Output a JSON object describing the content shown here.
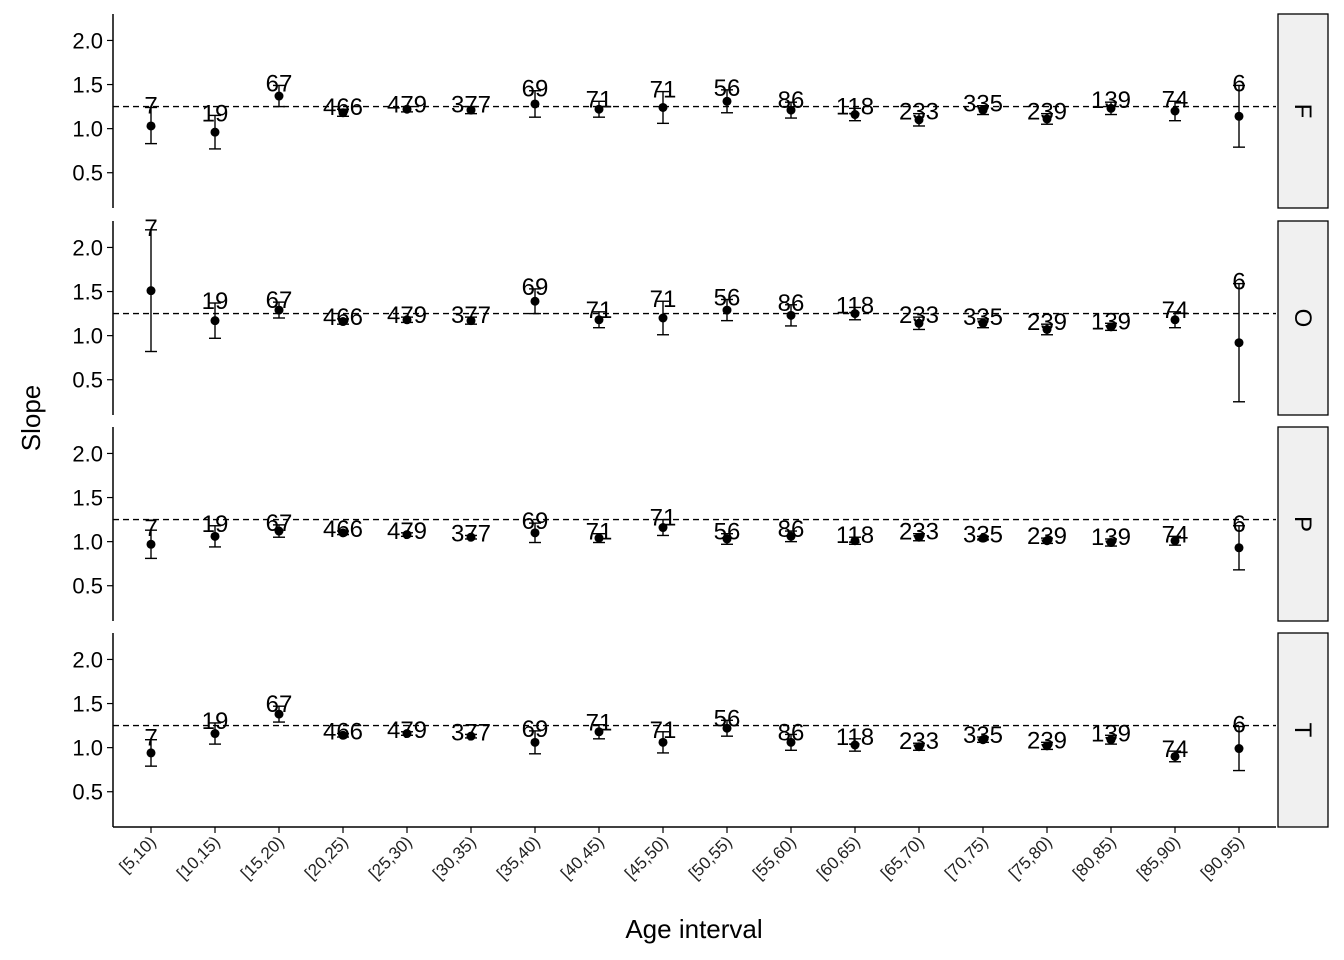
{
  "chart_data": {
    "type": "scatter",
    "variant": "faceted point estimates with error bars and count labels",
    "xlabel": "Age interval",
    "ylabel": "Slope",
    "ylim": [
      0.1,
      2.3
    ],
    "yticks": [
      0.5,
      1.0,
      1.5,
      2.0
    ],
    "ytick_labels": [
      "0.5",
      "1.0",
      "1.5",
      "2.0"
    ],
    "reference_line": 1.25,
    "grid": false,
    "categories": [
      "[5,10)",
      "[10,15)",
      "[15,20)",
      "[20,25)",
      "[25,30)",
      "[30,35)",
      "[35,40)",
      "[40,45)",
      "[45,50)",
      "[50,55)",
      "[55,60)",
      "[60,65)",
      "[65,70)",
      "[70,75)",
      "[75,80)",
      "[80,85)",
      "[85,90)",
      "[90,95)"
    ],
    "counts": [
      "7",
      "19",
      "67",
      "466",
      "479",
      "377",
      "69",
      "71",
      "71",
      "56",
      "86",
      "118",
      "233",
      "335",
      "239",
      "139",
      "74",
      "6"
    ],
    "panels": [
      {
        "strip": "F",
        "values": [
          1.03,
          0.96,
          1.37,
          1.18,
          1.22,
          1.21,
          1.28,
          1.22,
          1.24,
          1.31,
          1.21,
          1.16,
          1.1,
          1.21,
          1.11,
          1.23,
          1.2,
          1.14
        ],
        "lower": [
          0.83,
          0.77,
          1.25,
          1.14,
          1.19,
          1.17,
          1.13,
          1.13,
          1.06,
          1.18,
          1.12,
          1.09,
          1.03,
          1.16,
          1.05,
          1.16,
          1.09,
          0.79
        ],
        "upper": [
          1.24,
          1.15,
          1.49,
          1.22,
          1.25,
          1.25,
          1.43,
          1.31,
          1.42,
          1.44,
          1.3,
          1.23,
          1.17,
          1.26,
          1.17,
          1.3,
          1.31,
          1.49
        ]
      },
      {
        "strip": "O",
        "values": [
          1.51,
          1.17,
          1.29,
          1.16,
          1.18,
          1.17,
          1.39,
          1.18,
          1.2,
          1.29,
          1.23,
          1.25,
          1.14,
          1.14,
          1.07,
          1.1,
          1.18,
          0.92
        ],
        "lower": [
          0.82,
          0.97,
          1.2,
          1.13,
          1.15,
          1.13,
          1.25,
          1.09,
          1.01,
          1.17,
          1.11,
          1.18,
          1.07,
          1.09,
          1.01,
          1.06,
          1.09,
          0.25
        ],
        "upper": [
          2.2,
          1.37,
          1.38,
          1.19,
          1.21,
          1.21,
          1.53,
          1.27,
          1.39,
          1.41,
          1.35,
          1.32,
          1.21,
          1.19,
          1.13,
          1.14,
          1.27,
          1.59
        ]
      },
      {
        "strip": "P",
        "values": [
          0.97,
          1.06,
          1.12,
          1.1,
          1.08,
          1.05,
          1.1,
          1.04,
          1.16,
          1.03,
          1.06,
          1.01,
          1.05,
          1.04,
          1.01,
          0.99,
          1.01,
          0.93
        ],
        "lower": [
          0.81,
          0.94,
          1.05,
          1.08,
          1.06,
          1.03,
          0.99,
          0.99,
          1.07,
          0.97,
          1.0,
          0.97,
          1.01,
          1.02,
          0.98,
          0.95,
          0.96,
          0.68
        ],
        "upper": [
          1.13,
          1.18,
          1.19,
          1.12,
          1.1,
          1.07,
          1.21,
          1.09,
          1.25,
          1.09,
          1.12,
          1.05,
          1.09,
          1.06,
          1.04,
          1.03,
          1.06,
          1.18
        ]
      },
      {
        "strip": "T",
        "values": [
          0.94,
          1.16,
          1.38,
          1.14,
          1.16,
          1.13,
          1.06,
          1.18,
          1.06,
          1.22,
          1.06,
          1.03,
          1.01,
          1.09,
          1.02,
          1.09,
          0.9,
          0.99
        ],
        "lower": [
          0.79,
          1.04,
          1.29,
          1.12,
          1.14,
          1.11,
          0.93,
          1.1,
          0.94,
          1.13,
          0.97,
          0.96,
          0.97,
          1.06,
          0.98,
          1.04,
          0.84,
          0.74
        ],
        "upper": [
          1.09,
          1.28,
          1.47,
          1.16,
          1.18,
          1.15,
          1.19,
          1.26,
          1.18,
          1.31,
          1.15,
          1.1,
          1.05,
          1.12,
          1.06,
          1.14,
          0.96,
          1.24
        ]
      }
    ]
  }
}
